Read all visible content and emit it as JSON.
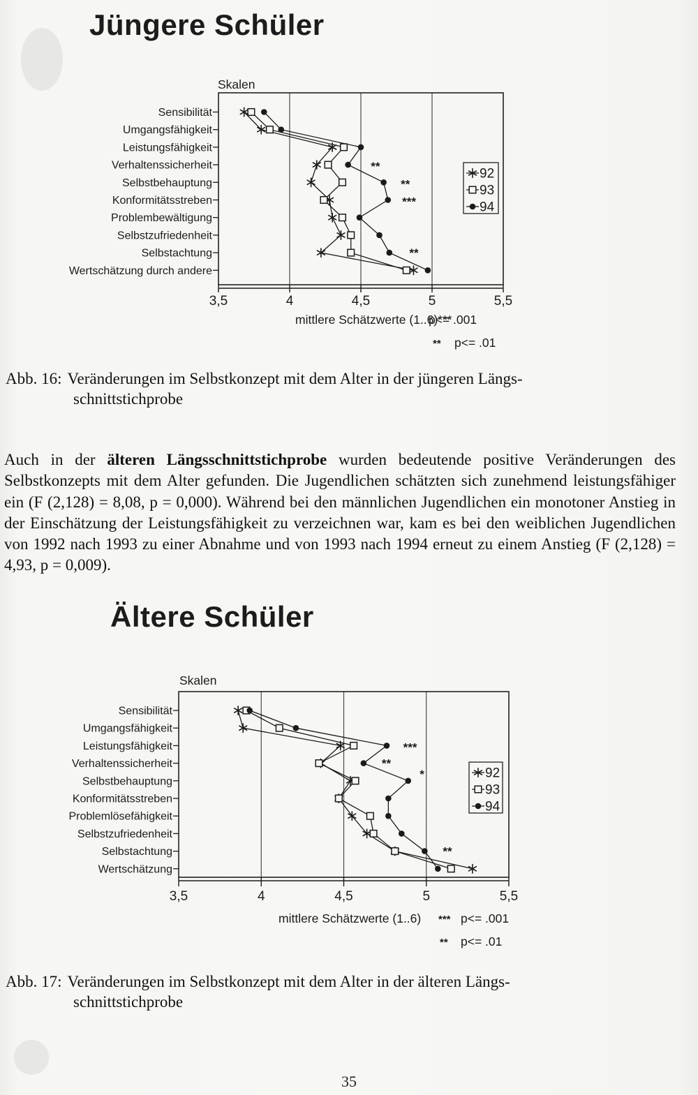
{
  "page": {
    "number": "35"
  },
  "header1": {
    "title": "Jüngere Schüler"
  },
  "caption16": {
    "label": "Abb. 16:",
    "line1": "Veränderungen im Selbstkonzept mit dem Alter in der jüngeren Längs-",
    "line2": "schnittstichprobe"
  },
  "paragraph": {
    "pre": "Auch in der ",
    "bold": "älteren Längsschnittstichprobe",
    "post": " wurden bedeutende positive Veränderungen des Selbstkonzepts mit dem Alter gefunden. Die Jugendlichen schätzten sich zunehmend leistungsfähiger ein (F (2,128) = 8,08, p = 0,000). Während bei den männlichen Jugendlichen ein monotoner Anstieg in der Einschätzung der Leistungsfähigkeit zu verzeichnen war, kam es bei den weiblichen Jugendlichen von 1992 nach 1993 zu einer Abnahme und von 1993 nach 1994 erneut zu einem Anstieg (F (2,128) = 4,93, p = 0,009)."
  },
  "header2": {
    "title": "Ältere Schüler"
  },
  "caption17": {
    "label": "Abb. 17:",
    "line1": "Veränderungen im Selbstkonzept mit dem Alter in der älteren Längs-",
    "line2": "schnittstichprobe"
  },
  "chart_data": [
    {
      "id": "juengere",
      "type": "line",
      "title": "Jüngere Schüler",
      "corner_label": "Skalen",
      "xlabel": "mittlere Schätzwerte (1..6)***",
      "note1_symbol": "",
      "note1_text": "p<= .001",
      "note2_symbol": "**",
      "note2_text": "p<= .01",
      "xlim": [
        3.5,
        5.5
      ],
      "xticks": [
        {
          "value": 3.5,
          "label": "3,5"
        },
        {
          "value": 4.0,
          "label": "4"
        },
        {
          "value": 4.5,
          "label": "4,5"
        },
        {
          "value": 5.0,
          "label": "5"
        },
        {
          "value": 5.5,
          "label": "5,5"
        }
      ],
      "gridlines": [
        4.0,
        4.5,
        5.0
      ],
      "categories": [
        "Sensibilität",
        "Umgangsfähigkeit",
        "Leistungsfähigkeit",
        "Verhaltenssicherheit",
        "Selbstbehauptung",
        "Konformitätsstreben",
        "Problembewältigung",
        "Selbstzufriedenheit",
        "Selbstachtung",
        "Wertschätzung durch andere"
      ],
      "series": [
        {
          "name": "92",
          "marker": "star",
          "values": [
            3.68,
            3.8,
            4.3,
            4.19,
            4.15,
            4.28,
            4.3,
            4.36,
            4.22,
            4.87
          ]
        },
        {
          "name": "93",
          "marker": "square",
          "values": [
            3.73,
            3.86,
            4.38,
            4.27,
            4.37,
            4.24,
            4.37,
            4.43,
            4.43,
            4.82
          ]
        },
        {
          "name": "94",
          "marker": "dot",
          "values": [
            3.82,
            3.94,
            4.5,
            4.41,
            4.66,
            4.69,
            4.49,
            4.63,
            4.7,
            4.97
          ]
        }
      ],
      "legend": {
        "entries": [
          "92",
          "93",
          "94"
        ]
      },
      "significance": [
        {
          "category": "Verhaltenssicherheit",
          "row": 3,
          "label": "**",
          "x": 4.57,
          "dy": 0
        },
        {
          "category": "Selbstbehauptung",
          "row": 4,
          "label": "**",
          "x": 4.78,
          "dy": 0
        },
        {
          "category": "Konformitätsstreben",
          "row": 5,
          "label": "***",
          "x": 4.79,
          "dy": 0
        },
        {
          "category": "Selbstachtung",
          "row": 8,
          "label": "**",
          "x": 4.84,
          "dy": -2
        }
      ]
    },
    {
      "id": "aeltere",
      "type": "line",
      "title": "Ältere Schüler",
      "corner_label": "Skalen",
      "xlabel": "mittlere Schätzwerte (1..6)",
      "note1_symbol": "***",
      "note1_text": "p<= .001",
      "note2_symbol": "**",
      "note2_text": "p<= .01",
      "xlim": [
        3.5,
        5.5
      ],
      "xticks": [
        {
          "value": 3.5,
          "label": "3,5"
        },
        {
          "value": 4.0,
          "label": "4"
        },
        {
          "value": 4.5,
          "label": "4,5"
        },
        {
          "value": 5.0,
          "label": "5"
        },
        {
          "value": 5.5,
          "label": "5,5"
        }
      ],
      "gridlines": [
        4.0,
        4.5,
        5.0
      ],
      "categories": [
        "Sensibilität",
        "Umgangsfähigkeit",
        "Leistungsfähigkeit",
        "Verhaltenssicherheit",
        "Selbstbehauptung",
        "Konformitätsstreben",
        "Problemlösefähigkeit",
        "Selbstzufriedenheit",
        "Selbstachtung",
        "Wertschätzung"
      ],
      "series": [
        {
          "name": "92",
          "marker": "star",
          "values": [
            3.86,
            3.89,
            4.48,
            4.36,
            4.54,
            4.47,
            4.55,
            4.64,
            4.81,
            5.28
          ]
        },
        {
          "name": "93",
          "marker": "square",
          "values": [
            3.91,
            4.11,
            4.56,
            4.35,
            4.57,
            4.47,
            4.66,
            4.68,
            4.81,
            5.15
          ]
        },
        {
          "name": "94",
          "marker": "dot",
          "values": [
            3.93,
            4.21,
            4.76,
            4.62,
            4.89,
            4.77,
            4.77,
            4.85,
            4.99,
            5.07
          ]
        }
      ],
      "legend": {
        "entries": [
          "92",
          "93",
          "94"
        ]
      },
      "significance": [
        {
          "category": "Leistungsfähigkeit",
          "row": 2,
          "label": "***",
          "x": 4.86,
          "dy": 0
        },
        {
          "category": "Verhaltenssicherheit",
          "row": 3,
          "label": "**",
          "x": 4.73,
          "dy": -2
        },
        {
          "category": "Selbstbehauptung",
          "row": 4,
          "label": "*",
          "x": 4.96,
          "dy": -12
        },
        {
          "category": "Selbstachtung",
          "row": 8,
          "label": "**",
          "x": 5.1,
          "dy": -2
        }
      ]
    }
  ]
}
